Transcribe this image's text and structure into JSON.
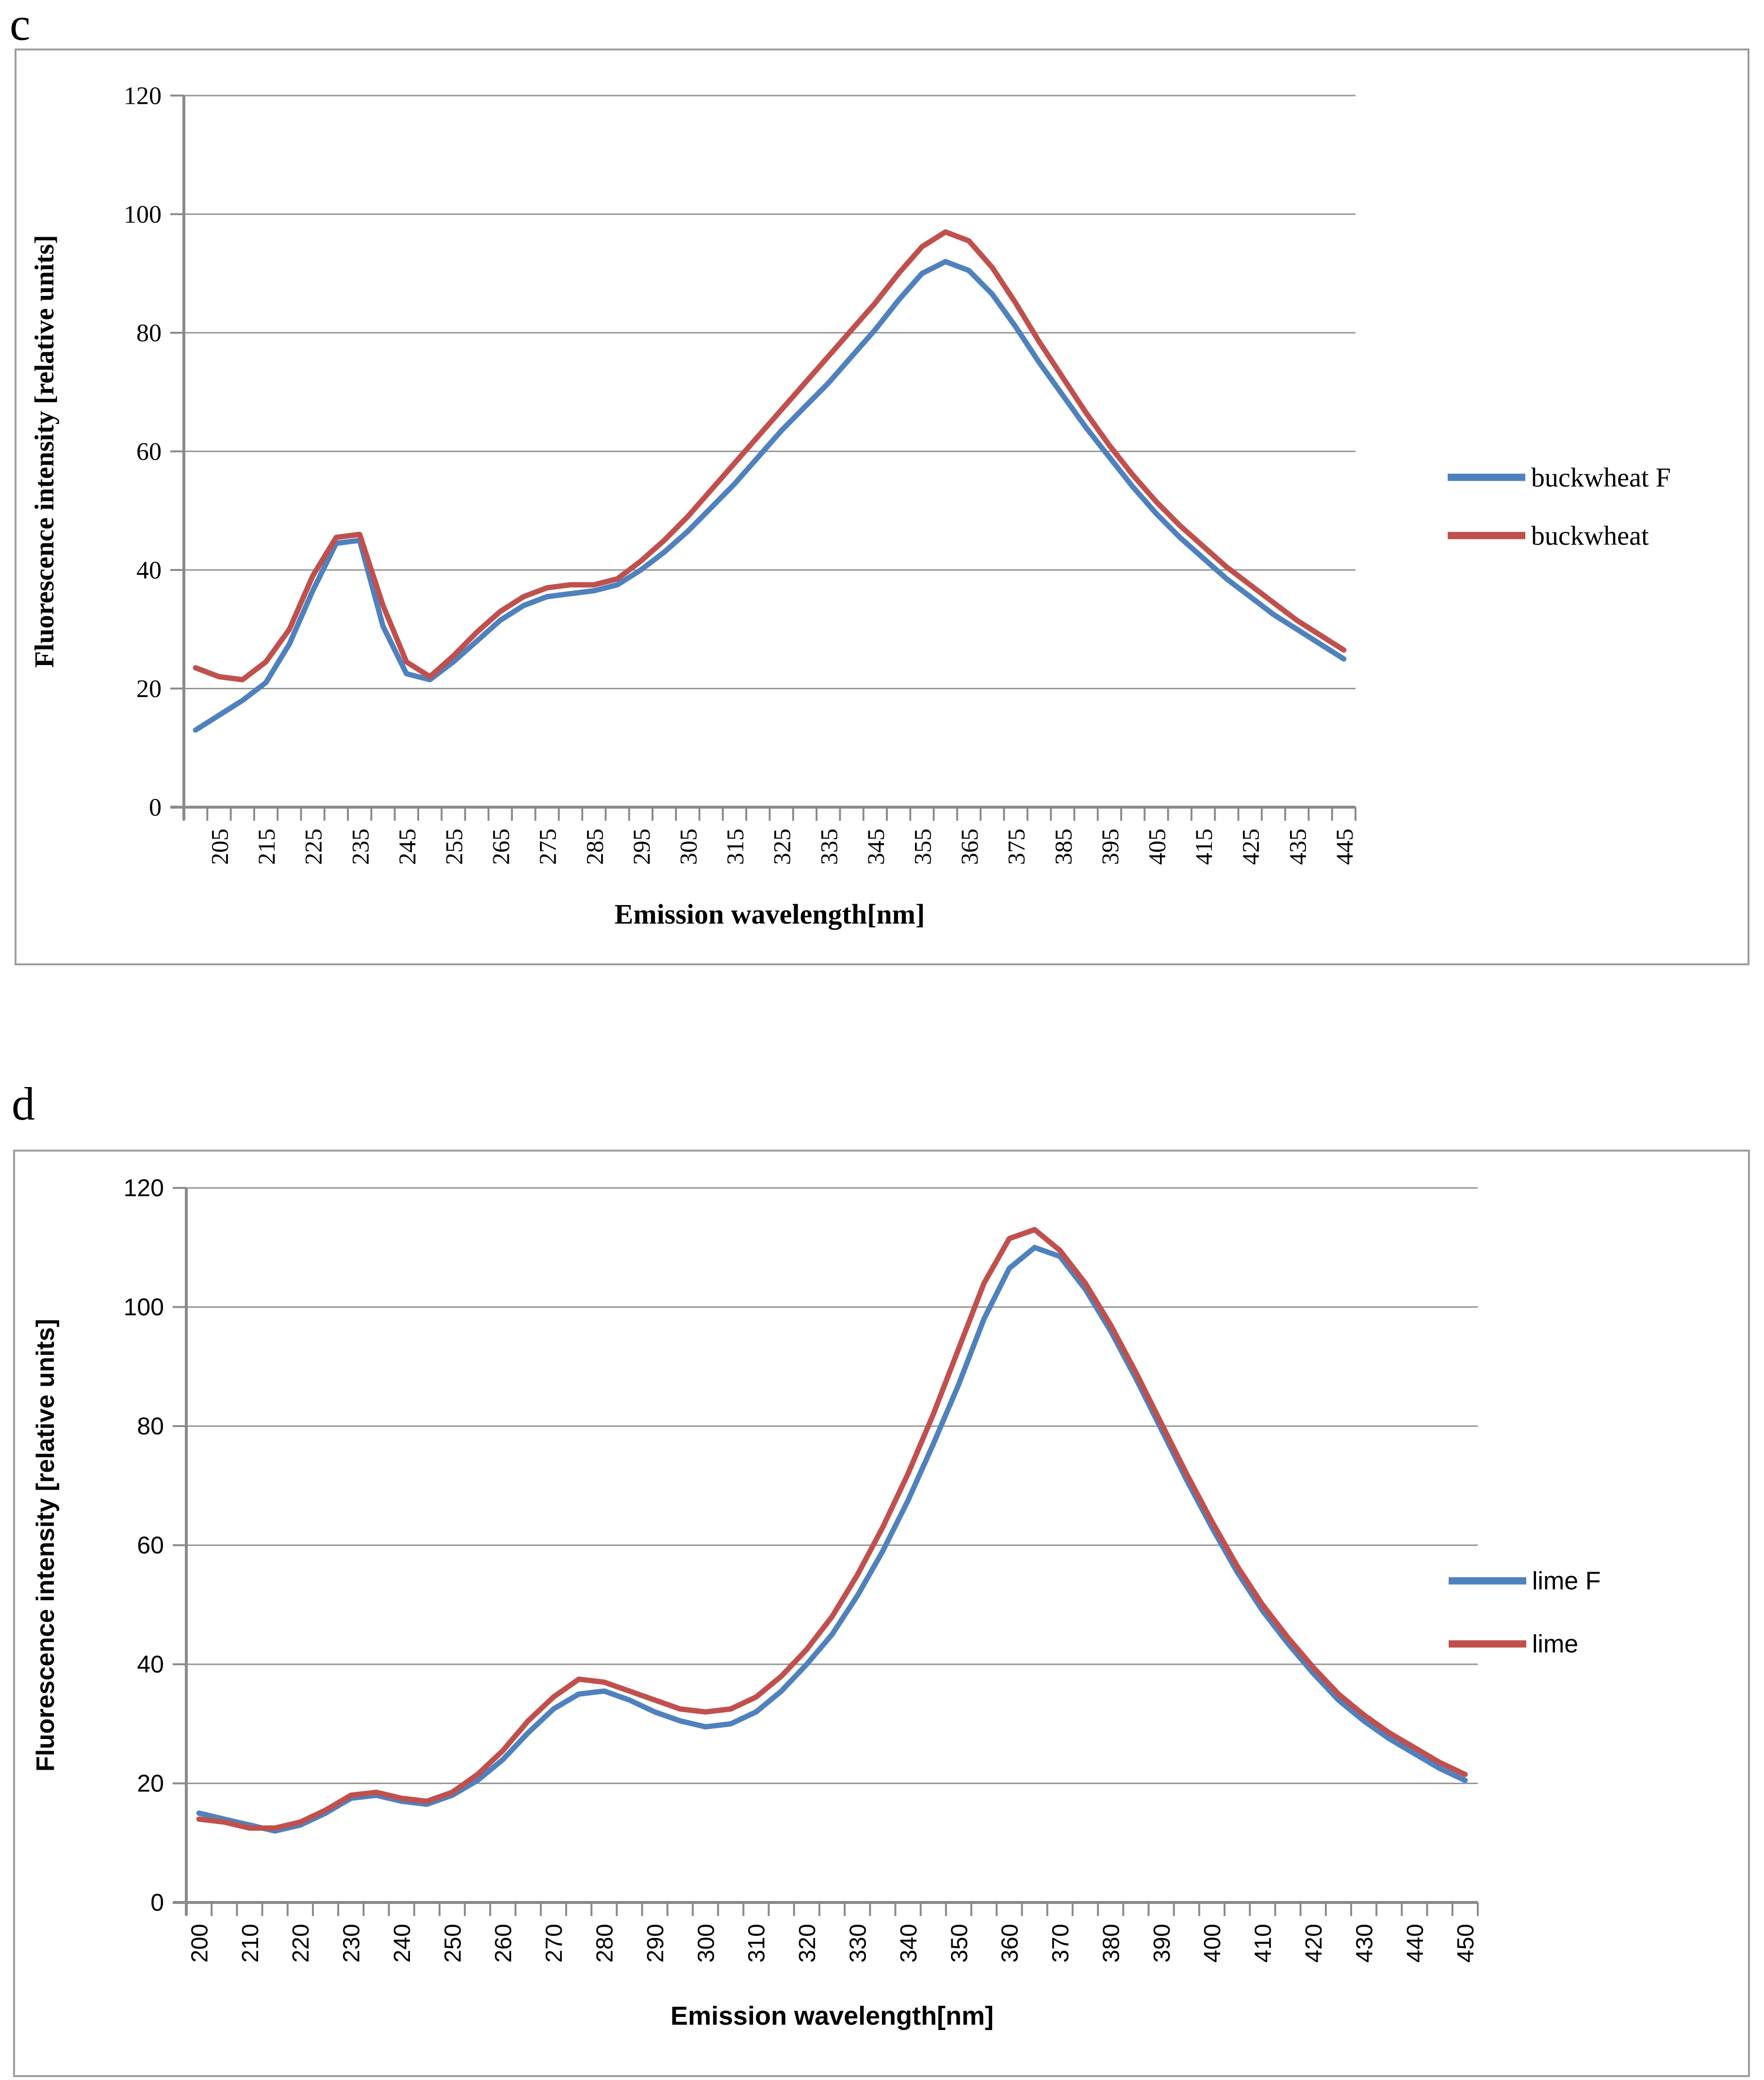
{
  "panels": [
    {
      "letter": "c"
    },
    {
      "letter": "d"
    }
  ],
  "colors": {
    "series_blue": "#4F81BD",
    "series_red": "#C0504D",
    "gridline": "#969696",
    "axis": "#8a8a8a",
    "text": "#000000",
    "frame_border": "#9d9d9d"
  },
  "chart_data": [
    {
      "type": "line",
      "panel": "c",
      "title": "",
      "xlabel": "Emission wavelength[nm]",
      "ylabel": "Fluorescence intensity [relative units]",
      "ylim": [
        0,
        120
      ],
      "y_ticks": [
        0,
        20,
        40,
        60,
        80,
        100,
        120
      ],
      "grid": true,
      "legend_position": "right",
      "x": [
        200,
        205,
        210,
        215,
        220,
        225,
        230,
        235,
        240,
        245,
        250,
        255,
        260,
        265,
        270,
        275,
        280,
        285,
        290,
        295,
        300,
        305,
        310,
        315,
        320,
        325,
        330,
        335,
        340,
        345,
        350,
        355,
        360,
        365,
        370,
        375,
        380,
        385,
        390,
        395,
        400,
        405,
        410,
        415,
        420,
        425,
        430,
        435,
        440,
        445
      ],
      "x_tick_labels": [
        "205",
        "215",
        "225",
        "235",
        "245",
        "255",
        "265",
        "275",
        "285",
        "295",
        "305",
        "315",
        "325",
        "335",
        "345",
        "355",
        "365",
        "375",
        "385",
        "395",
        "405",
        "415",
        "425",
        "435",
        "445"
      ],
      "series": [
        {
          "name": "buckwheat F",
          "color": "#4F81BD",
          "values": [
            13,
            15.5,
            18,
            21,
            27.5,
            36.5,
            44.5,
            45,
            30.5,
            22.5,
            21.5,
            24.5,
            28,
            31.5,
            34,
            35.5,
            36,
            36.5,
            37.5,
            40,
            43,
            46.5,
            50.5,
            54.5,
            59,
            63.5,
            67.5,
            71.5,
            76,
            80.5,
            85.5,
            90,
            92,
            90.5,
            86.5,
            81,
            75,
            69.5,
            64,
            59,
            54,
            49.5,
            45.5,
            42,
            38.5,
            35.5,
            32.5,
            30,
            27.5,
            25
          ]
        },
        {
          "name": "buckwheat",
          "color": "#C0504D",
          "values": [
            23.5,
            22,
            21.5,
            24.5,
            30,
            39,
            45.5,
            46,
            34,
            24.5,
            22,
            25.5,
            29.5,
            33,
            35.5,
            37,
            37.5,
            37.5,
            38.5,
            41.5,
            45,
            49,
            53.5,
            58,
            62.5,
            67,
            71.5,
            76,
            80.5,
            85,
            90,
            94.5,
            97,
            95.5,
            91,
            85,
            78.5,
            72.5,
            66.5,
            61,
            56,
            51.5,
            47.5,
            44,
            40.5,
            37.5,
            34.5,
            31.5,
            29,
            26.5
          ]
        }
      ]
    },
    {
      "type": "line",
      "panel": "d",
      "title": "",
      "xlabel": "Emission wavelength[nm]",
      "ylabel": "Fluorescence intensity [relative units]",
      "ylim": [
        0,
        120
      ],
      "y_ticks": [
        0,
        20,
        40,
        60,
        80,
        100,
        120
      ],
      "grid": true,
      "legend_position": "right",
      "x": [
        200,
        205,
        210,
        215,
        220,
        225,
        230,
        235,
        240,
        245,
        250,
        255,
        260,
        265,
        270,
        275,
        280,
        285,
        290,
        295,
        300,
        305,
        310,
        315,
        320,
        325,
        330,
        335,
        340,
        345,
        350,
        355,
        360,
        365,
        370,
        375,
        380,
        385,
        390,
        395,
        400,
        405,
        410,
        415,
        420,
        425,
        430,
        435,
        440,
        445,
        450
      ],
      "x_tick_labels": [
        "200",
        "210",
        "220",
        "230",
        "240",
        "250",
        "260",
        "270",
        "280",
        "290",
        "300",
        "310",
        "320",
        "330",
        "340",
        "350",
        "360",
        "370",
        "380",
        "390",
        "400",
        "410",
        "420",
        "430",
        "440",
        "450"
      ],
      "series": [
        {
          "name": "lime F",
          "color": "#4F81BD",
          "values": [
            15,
            14,
            13,
            12,
            13,
            15,
            17.5,
            18,
            17,
            16.5,
            18,
            20.5,
            24,
            28.5,
            32.5,
            35,
            35.5,
            34,
            32,
            30.5,
            29.5,
            30,
            32,
            35.5,
            40,
            45,
            51.5,
            59,
            67.5,
            77,
            87,
            98,
            106.5,
            110,
            108.5,
            103,
            96,
            88,
            79.5,
            71,
            63,
            55.5,
            49,
            43.5,
            38.5,
            34,
            30.5,
            27.5,
            25,
            22.5,
            20.5
          ]
        },
        {
          "name": "lime",
          "color": "#C0504D",
          "values": [
            14,
            13.5,
            12.5,
            12.5,
            13.5,
            15.5,
            18,
            18.5,
            17.5,
            17,
            18.5,
            21.5,
            25.5,
            30.5,
            34.5,
            37.5,
            37,
            35.5,
            34,
            32.5,
            32,
            32.5,
            34.5,
            38,
            42.5,
            48,
            55,
            63,
            72,
            82,
            93,
            104,
            111.5,
            113,
            109.5,
            104,
            97,
            89,
            80.5,
            72,
            64,
            56.5,
            50,
            44.5,
            39.5,
            35,
            31.5,
            28.5,
            26,
            23.5,
            21.5
          ]
        }
      ]
    }
  ]
}
